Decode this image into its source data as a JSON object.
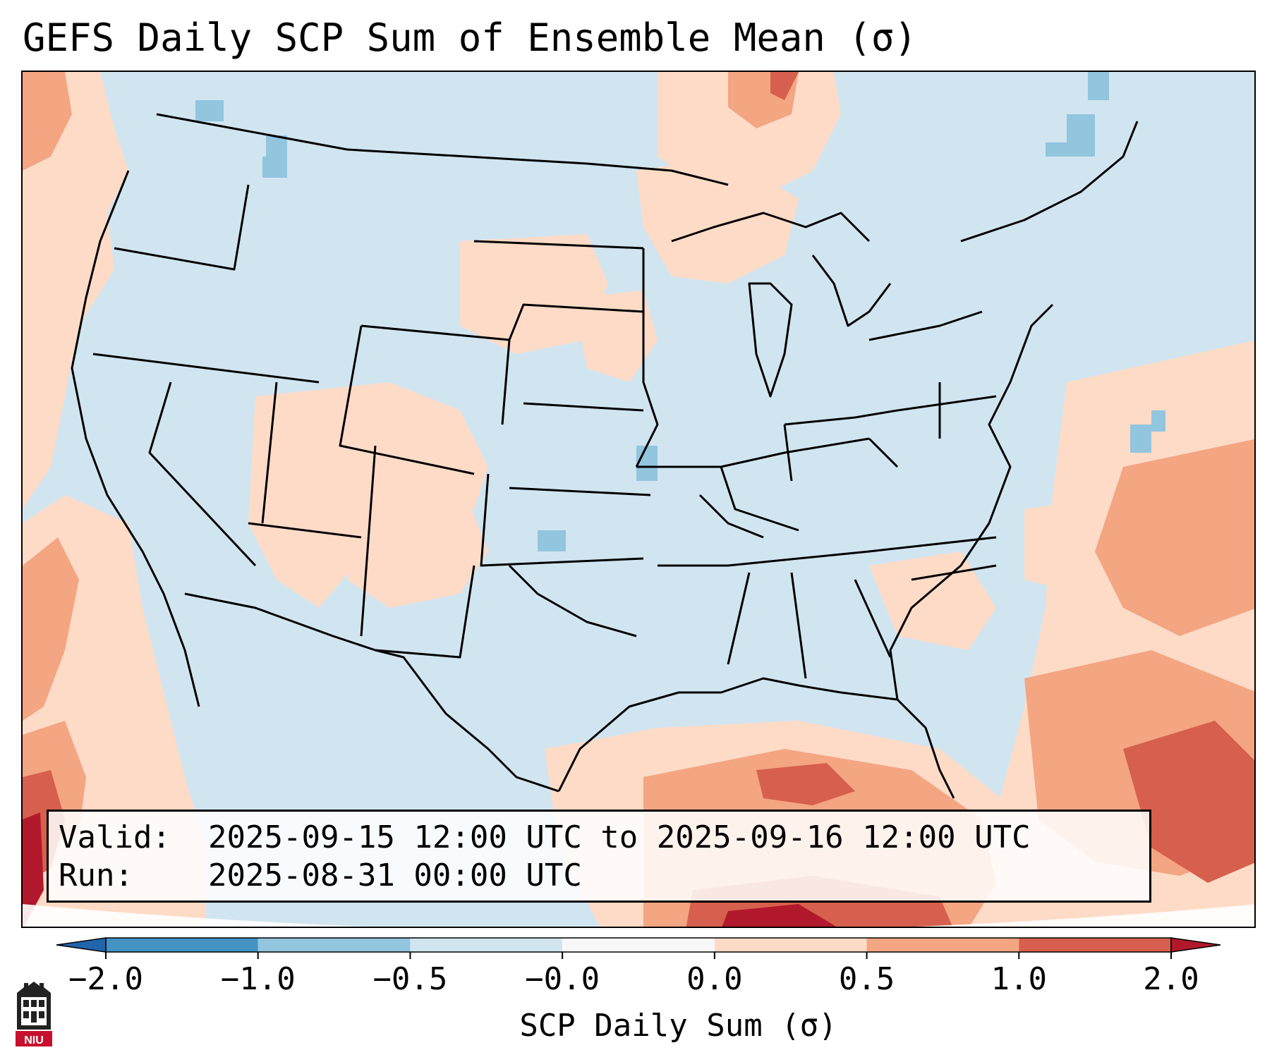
{
  "title": "GEFS Daily SCP Sum of Ensemble Mean (σ)",
  "valid": {
    "label": "Valid:",
    "value": "2025-09-15 12:00 UTC to 2025-09-16 12:00 UTC"
  },
  "run": {
    "label": "Run:",
    "value": "2025-08-31 00:00 UTC"
  },
  "colorbar": {
    "label": "SCP Daily Sum (σ)",
    "ticks": [
      "−2.0",
      "−1.0",
      "−0.5",
      "−0.0",
      "0.0",
      "0.5",
      "1.0",
      "2.0"
    ],
    "colors": [
      "#2166ac",
      "#4393c3",
      "#92c5de",
      "#d1e5f0",
      "#f7f7f7",
      "#fddbc7",
      "#f4a582",
      "#d6604d",
      "#b2182b"
    ]
  },
  "logo": {
    "text": "NIU",
    "icon": "niu-university-logo-icon",
    "color": "#c8102e"
  },
  "map": {
    "region": "CONUS",
    "variable": "SCP Daily Sum anomaly"
  }
}
